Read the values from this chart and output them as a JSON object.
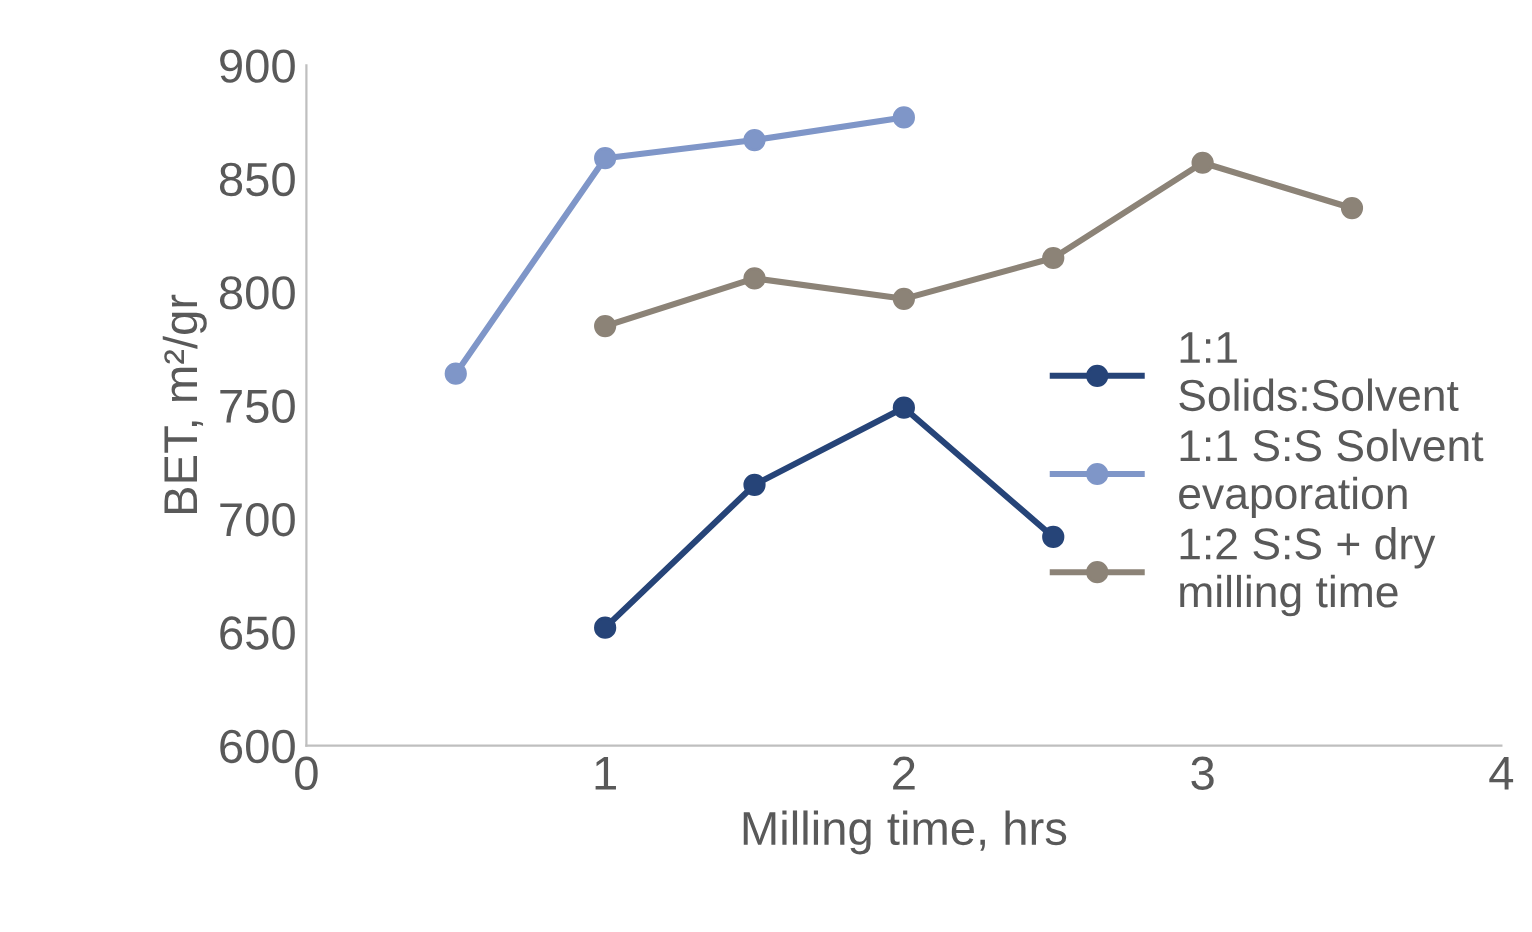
{
  "chart_data": {
    "type": "line",
    "xlabel": "Milling time, hrs",
    "ylabel": "BET, m²/gr",
    "xlim": [
      0,
      4
    ],
    "xticks": [
      0,
      1,
      2,
      3,
      4
    ],
    "ylim": [
      600,
      900
    ],
    "yticks": [
      600,
      650,
      700,
      750,
      800,
      850,
      900
    ],
    "grid": false,
    "legend": "right",
    "marker": "circle",
    "line_style": "solid",
    "series": [
      {
        "name": "1:1\nSolids:Solvent",
        "color": "#264478",
        "x": [
          1,
          1.5,
          2,
          2.5
        ],
        "values": [
          652,
          715,
          749,
          692
        ]
      },
      {
        "name": "1:1 S:S Solvent\nevaporation",
        "color": "#7f96c8",
        "x": [
          0.5,
          1,
          1.5,
          2
        ],
        "values": [
          764,
          859,
          867,
          877
        ]
      },
      {
        "name": "1:2 S:S + dry\nmilling time",
        "color": "#8c8377",
        "x": [
          1,
          1.5,
          2,
          2.5,
          3,
          3.5
        ],
        "values": [
          785,
          806,
          797,
          815,
          857,
          837
        ]
      }
    ]
  }
}
